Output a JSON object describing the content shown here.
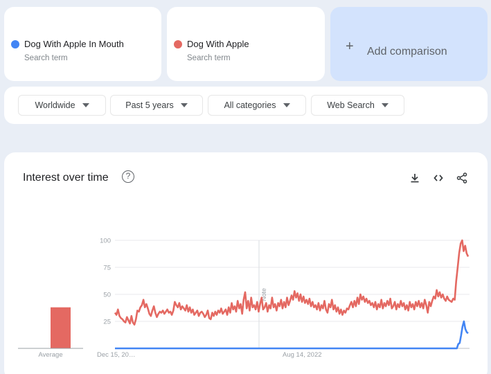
{
  "terms": [
    {
      "name": "Dog With Apple In Mouth",
      "subtitle": "Search term",
      "color": "#4285f4"
    },
    {
      "name": "Dog With Apple",
      "subtitle": "Search term",
      "color": "#e46962"
    }
  ],
  "add_comparison": {
    "icon": "plus-icon",
    "label": "Add comparison"
  },
  "filters": [
    {
      "label": "Worldwide"
    },
    {
      "label": "Past 5 years"
    },
    {
      "label": "All categories"
    },
    {
      "label": "Web Search"
    }
  ],
  "interest_over_time": {
    "title": "Interest over time",
    "help_icon": "?",
    "tools": [
      "download-icon",
      "embed-code-icon",
      "share-icon"
    ]
  },
  "chart_data": {
    "type": "line",
    "title": "Interest over time",
    "xlabel": "",
    "ylabel": "",
    "ylim": [
      0,
      100
    ],
    "yticks": [
      25,
      50,
      75,
      100
    ],
    "xtick_labels": [
      "Dec 15, 20…",
      "Aug 14, 2022"
    ],
    "grid": true,
    "annotation": {
      "label": "Note",
      "position": "vertical line near 40% of timeline"
    },
    "average_bars": {
      "label": "Average",
      "series": [
        {
          "name": "Dog With Apple In Mouth",
          "value": 0
        },
        {
          "name": "Dog With Apple",
          "value": 38
        }
      ]
    },
    "series": [
      {
        "name": "Dog With Apple",
        "color": "#e46962",
        "values": [
          33,
          31,
          36,
          30,
          28,
          27,
          25,
          24,
          29,
          26,
          23,
          30,
          24,
          22,
          27,
          35,
          34,
          38,
          40,
          45,
          38,
          41,
          37,
          32,
          30,
          35,
          39,
          33,
          29,
          32,
          34,
          33,
          35,
          32,
          34,
          36,
          33,
          34,
          31,
          35,
          43,
          40,
          38,
          42,
          36,
          39,
          37,
          35,
          40,
          34,
          38,
          33,
          36,
          31,
          33,
          35,
          30,
          33,
          34,
          32,
          29,
          31,
          35,
          28,
          27,
          33,
          30,
          34,
          31,
          35,
          33,
          37,
          32,
          34,
          36,
          31,
          38,
          33,
          42,
          36,
          39,
          34,
          44,
          37,
          41,
          32,
          45,
          52,
          37,
          44,
          35,
          47,
          38,
          40,
          36,
          43,
          34,
          41,
          47,
          36,
          38,
          42,
          34,
          40,
          37,
          47,
          38,
          41,
          35,
          42,
          39,
          45,
          37,
          43,
          38,
          47,
          40,
          44,
          49,
          45,
          53,
          47,
          51,
          44,
          50,
          43,
          48,
          42,
          45,
          41,
          46,
          39,
          43,
          38,
          40,
          36,
          42,
          35,
          40,
          37,
          44,
          36,
          33,
          41,
          38,
          45,
          36,
          40,
          34,
          38,
          32,
          36,
          31,
          35,
          33,
          37,
          36,
          40,
          43,
          38,
          44,
          39,
          47,
          41,
          50,
          45,
          48,
          43,
          46,
          42,
          44,
          40,
          42,
          38,
          43,
          36,
          41,
          38,
          45,
          37,
          42,
          39,
          44,
          40,
          46,
          37,
          39,
          43,
          36,
          41,
          38,
          44,
          39,
          42,
          36,
          40,
          35,
          43,
          38,
          41,
          36,
          43,
          39,
          44,
          38,
          42,
          37,
          45,
          40,
          33,
          43,
          39,
          44,
          48,
          46,
          54,
          48,
          52,
          47,
          50,
          46,
          44,
          48,
          45,
          44,
          43,
          46,
          45,
          62,
          75,
          88,
          97,
          100,
          90,
          95,
          88,
          85
        ],
        "note": "weekly values, approx. Dec 2019 – Dec 2024; spike to 100 at end"
      },
      {
        "name": "Dog With Apple In Mouth",
        "color": "#4285f4",
        "values": [
          0,
          0,
          0,
          0,
          0,
          0,
          0,
          0,
          0,
          0,
          0,
          0,
          0,
          0,
          0,
          0,
          0,
          0,
          0,
          0,
          0,
          0,
          0,
          0,
          0,
          0,
          0,
          0,
          0,
          0,
          0,
          0,
          0,
          0,
          0,
          0,
          0,
          0,
          0,
          0,
          0,
          0,
          0,
          0,
          0,
          0,
          0,
          0,
          0,
          0,
          0,
          0,
          0,
          0,
          0,
          0,
          0,
          0,
          0,
          0,
          0,
          0,
          0,
          0,
          0,
          0,
          0,
          0,
          0,
          0,
          0,
          0,
          0,
          0,
          0,
          0,
          0,
          0,
          0,
          0,
          0,
          0,
          0,
          0,
          0,
          0,
          0,
          0,
          0,
          0,
          0,
          0,
          0,
          0,
          0,
          0,
          0,
          0,
          0,
          0,
          0,
          0,
          0,
          0,
          0,
          0,
          0,
          0,
          0,
          0,
          0,
          0,
          0,
          0,
          0,
          0,
          0,
          0,
          0,
          0,
          0,
          0,
          0,
          0,
          0,
          0,
          0,
          0,
          0,
          0,
          0,
          0,
          0,
          0,
          0,
          0,
          0,
          0,
          0,
          0,
          0,
          0,
          0,
          0,
          0,
          0,
          0,
          0,
          0,
          0,
          0,
          0,
          0,
          0,
          0,
          0,
          0,
          0,
          0,
          0,
          0,
          0,
          0,
          0,
          0,
          0,
          0,
          0,
          0,
          0,
          0,
          0,
          0,
          0,
          0,
          0,
          0,
          0,
          0,
          0,
          0,
          0,
          0,
          0,
          0,
          0,
          0,
          0,
          0,
          0,
          0,
          0,
          0,
          0,
          0,
          0,
          0,
          0,
          0,
          0,
          0,
          0,
          0,
          0,
          0,
          0,
          0,
          0,
          0,
          0,
          0,
          0,
          0,
          0,
          0,
          0,
          0,
          0,
          0,
          0,
          0,
          0,
          0,
          0,
          0,
          0,
          0,
          0,
          0,
          0,
          0,
          0,
          0,
          0,
          0,
          0,
          0,
          0,
          0,
          0,
          0,
          0,
          0,
          4,
          5,
          12,
          20,
          25,
          18,
          15,
          14
        ],
        "note": "near zero until final weeks, peaks ~25"
      }
    ]
  }
}
